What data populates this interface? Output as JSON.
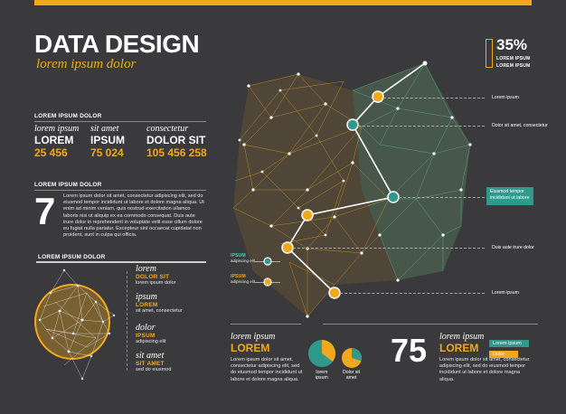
{
  "header": {
    "title": "DATA DESIGN",
    "subtitle": "lorem ipsum dolor"
  },
  "percent": {
    "value": "35%",
    "label1": "LOREM IPSUM",
    "label2": "LOREM IPSUM"
  },
  "stats": {
    "heading": "LOREM IPSUM DOLOR",
    "items": [
      {
        "italic": "lorem ipsum",
        "label": "LOREM",
        "value": "25 456"
      },
      {
        "italic": "sit amet",
        "label": "IPSUM",
        "value": "75 024"
      },
      {
        "italic": "consectetur",
        "label": "DOLOR SIT",
        "value": "105 456 258"
      }
    ]
  },
  "seven": {
    "heading": "LOREM IPSUM DOLOR",
    "number": "7",
    "text": "Lorem ipsum dolor sit amet, consectetur adipiscing elit, sed do eiusmod tempor incididunt ut labore et dolore magna aliqua. Ut enim ad minim veniam, quis nostrud exercitation ullamco laboris nisi ut aliquip ex ea commodo consequat. Duis aute irure dolor in reprehenderit in voluptate velit esse cillum dolore eu fugiat nulla pariatur. Excepteur sint occaecat cupidatat non proident, sunt in culpa qui officia."
  },
  "circle_section": {
    "heading": "LOREM IPSUM DOLOR",
    "entries": [
      {
        "italic": "lorem",
        "label": "DOLOR SIT",
        "desc": "lorem ipsum dolor"
      },
      {
        "italic": "ipsum",
        "label": "LOREM",
        "desc": "sit amet, consectetur"
      },
      {
        "italic": "dolor",
        "label": "IPSUM",
        "desc": "adipiscing elit"
      },
      {
        "italic": "sit amet",
        "label": "SIT AMET",
        "desc": "sed do eiusmod"
      }
    ]
  },
  "callouts": [
    {
      "text": "Lorem ipsum"
    },
    {
      "text": "Dolor sit amet, consectetur"
    },
    {
      "text": "Eiusmod tempor incididunt ut labore"
    },
    {
      "text": "Duis aute irure dolor"
    },
    {
      "text": "Lorem ipsum"
    }
  ],
  "mini_legend": [
    {
      "label": "IPSUM",
      "desc": "adipiscing elit"
    },
    {
      "label": "IPSUM",
      "desc": "adipiscing elit"
    }
  ],
  "bottom": {
    "block1": {
      "italic": "lorem ipsum",
      "label": "LOREM",
      "text": "Lorem ipsum dolor sit amet, consectetur adipiscing elit, sed do eiusmod tempor incididunt ut labore et dolore magna aliqua."
    },
    "pie1": {
      "label1": "lorem",
      "label2": "ipsum",
      "fraction": 0.35
    },
    "pie2": {
      "label1": "Dolor sit",
      "label2": "amet",
      "fraction": 0.3
    },
    "number": "75",
    "block2": {
      "italic": "lorem ipsum",
      "label": "LOREM",
      "text": "Lorem ipsum dolor sit amet, consectetur adipiscing elit, sed do eiusmod tempor incididunt ut labore et dolore magna aliqua."
    },
    "legend": [
      {
        "label": "Lorem ipsum"
      },
      {
        "label": "Dolor"
      }
    ]
  },
  "colors": {
    "accent": "#f2a81d",
    "teal": "#2f9a8c",
    "background": "#3a3a3c"
  }
}
